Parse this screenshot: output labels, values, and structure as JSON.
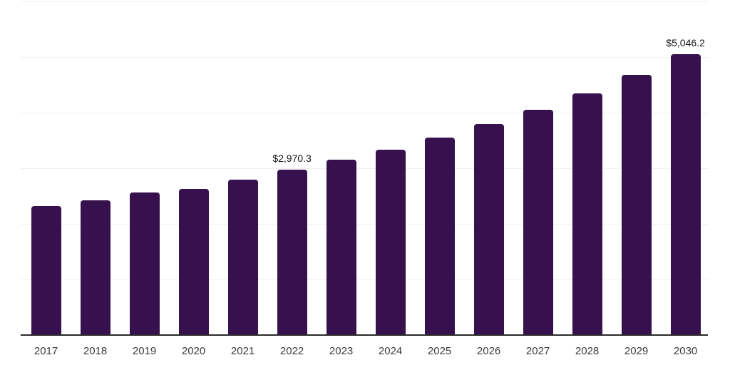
{
  "chart_data": {
    "type": "bar",
    "title": "",
    "xlabel": "",
    "ylabel": "",
    "categories": [
      "2017",
      "2018",
      "2019",
      "2020",
      "2021",
      "2022",
      "2023",
      "2024",
      "2025",
      "2026",
      "2027",
      "2028",
      "2029",
      "2030"
    ],
    "values": [
      2315,
      2420,
      2560,
      2625,
      2790,
      2970.3,
      3150,
      3330,
      3555,
      3790,
      4050,
      4350,
      4685,
      5046.2
    ],
    "annotations": [
      {
        "category": "2022",
        "value": 2970.3,
        "text": "$2,970.3"
      },
      {
        "category": "2030",
        "value": 5046.2,
        "text": "$5,046.2"
      }
    ],
    "ylim": [
      0,
      6000
    ],
    "grid_step": 1000,
    "grid": true,
    "y_axis_tick_labels_visible": false,
    "legend": false,
    "value_prefix": "$"
  },
  "colors": {
    "background": "#ffffff",
    "bar": "#37114d",
    "gridline": "#f0f0f0",
    "axis_line": "#2b2b2b",
    "tick_label": "#3c3c3c",
    "value_label": "#141414"
  }
}
